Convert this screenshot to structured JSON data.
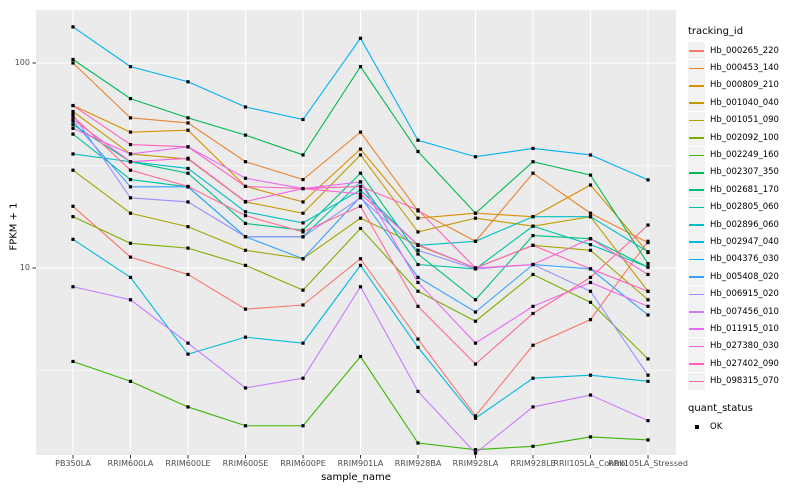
{
  "chart_data": {
    "type": "line",
    "title": "",
    "xlabel": "sample_name",
    "ylabel": "FPKM + 1",
    "y_scale": "log10",
    "y_tick_labels": [
      "100",
      "10"
    ],
    "y_tick_values": [
      100,
      10
    ],
    "y_minor_values": [
      31.62,
      3.162
    ],
    "ylim": [
      1.2,
      181
    ],
    "grid": true,
    "legend_position": "right",
    "legend_title": "tracking_id",
    "point_legend_title": "quant_status",
    "point_legend_label": "OK",
    "point_shape": "filled-square",
    "categories": [
      "PB350LA",
      "RRIM600LA",
      "RRIM600LE",
      "RRIM600SE",
      "RRIM600PE",
      "RRIM901LA",
      "RRIM928BA",
      "RRIM928LA",
      "RRIM928LE",
      "RRII105LA_Control",
      "RRII105LA_Stressed"
    ],
    "series": [
      {
        "name": "Hb_000265_220",
        "color": "#F8766D",
        "values": [
          20,
          11.3,
          9.3,
          6.3,
          6.6,
          11.1,
          4.5,
          1.9,
          4.2,
          5.6,
          13.5
        ]
      },
      {
        "name": "Hb_000453_140",
        "color": "#EA8331",
        "values": [
          100,
          54,
          51,
          33,
          27,
          46,
          19,
          13.5,
          29,
          18.5,
          13.3
        ]
      },
      {
        "name": "Hb_000809_210",
        "color": "#D89000",
        "values": [
          62,
          46,
          47,
          25,
          21,
          38,
          17.5,
          18.5,
          17.8,
          25.4,
          11.9
        ]
      },
      {
        "name": "Hb_001040_040",
        "color": "#C09B00",
        "values": [
          58,
          36,
          34,
          21,
          18.5,
          35.6,
          15,
          17.5,
          16,
          17.8,
          7.7
        ]
      },
      {
        "name": "Hb_001051_090",
        "color": "#A3A500",
        "values": [
          30,
          18.5,
          15.9,
          12.2,
          11.1,
          17.5,
          12.9,
          10,
          12.9,
          12.2,
          7
        ]
      },
      {
        "name": "Hb_002092_100",
        "color": "#7CAE00",
        "values": [
          17.8,
          13.2,
          12.5,
          10.3,
          7.8,
          15.6,
          7.7,
          5.5,
          9.3,
          6.8,
          3.6
        ]
      },
      {
        "name": "Hb_002249_160",
        "color": "#39B600",
        "values": [
          3.5,
          2.8,
          2.1,
          1.7,
          1.7,
          3.7,
          1.4,
          1.3,
          1.35,
          1.5,
          1.45
        ]
      },
      {
        "name": "Hb_002307_350",
        "color": "#00BB4E",
        "values": [
          104,
          67,
          54,
          44.5,
          35.6,
          96,
          37,
          18.5,
          33,
          28.4,
          10.5
        ]
      },
      {
        "name": "Hb_002681_170",
        "color": "#00BF7D",
        "values": [
          50,
          33,
          29,
          16.5,
          15.3,
          29,
          11.7,
          7,
          14.4,
          13.9,
          10.1
        ]
      },
      {
        "name": "Hb_002805_060",
        "color": "#00C1A3",
        "values": [
          45,
          27,
          24.9,
          14.2,
          14.2,
          26.3,
          10.4,
          9.9,
          16,
          13,
          10.1
        ]
      },
      {
        "name": "Hb_002896_060",
        "color": "#00BFC4",
        "values": [
          36,
          33,
          30.6,
          18.8,
          16.6,
          24,
          12.9,
          13.5,
          17.8,
          17.8,
          12
        ]
      },
      {
        "name": "Hb_002947_040",
        "color": "#00BAE0",
        "values": [
          13.8,
          9,
          3.8,
          4.6,
          4.3,
          10.3,
          4.1,
          1.85,
          2.9,
          3,
          2.8
        ]
      },
      {
        "name": "Hb_004376_030",
        "color": "#00B0F6",
        "values": [
          150,
          96,
          81,
          61,
          53,
          132,
          42,
          34.9,
          38.3,
          35.6,
          26.9
        ]
      },
      {
        "name": "Hb_005408_020",
        "color": "#35A2FF",
        "values": [
          52,
          24.9,
          24.9,
          14.2,
          11.1,
          22.3,
          9,
          6.1,
          10.4,
          9.9,
          5.9
        ]
      },
      {
        "name": "Hb_006915_020",
        "color": "#9590FF",
        "values": [
          56,
          22,
          21,
          14.2,
          14.2,
          22,
          12.2,
          9.9,
          10.4,
          7.7,
          3
        ]
      },
      {
        "name": "Hb_007456_010",
        "color": "#C77CFF",
        "values": [
          8.1,
          7,
          4.3,
          2.6,
          2.9,
          8.1,
          2.5,
          1.25,
          2.1,
          2.4,
          1.8
        ]
      },
      {
        "name": "Hb_011915_010",
        "color": "#E76BF3",
        "values": [
          48,
          36,
          39,
          27.4,
          24.4,
          26.3,
          8.5,
          4.3,
          6.5,
          8.5,
          6.5
        ]
      },
      {
        "name": "Hb_027380_030",
        "color": "#FA62DB",
        "values": [
          53,
          33,
          34.3,
          21.1,
          24.4,
          23,
          13,
          10,
          10.4,
          13.9,
          9.3
        ]
      },
      {
        "name": "Hb_027402_090",
        "color": "#FF62BC",
        "values": [
          62,
          40,
          39,
          25,
          24.4,
          25,
          19.2,
          10,
          12.9,
          9.9,
          7.7
        ]
      },
      {
        "name": "Hb_098315_070",
        "color": "#FF6A98",
        "values": [
          55,
          30,
          25,
          18,
          15,
          20,
          6.5,
          3.4,
          6,
          9,
          16.2
        ]
      }
    ]
  },
  "theme": {
    "panel_bg": "#EBEBEB",
    "grid_color": "#FFFFFF",
    "point_color": "#000000",
    "tick_text_color": "#4D4D4D",
    "tick_mark_color": "#333333",
    "legend_key_bg": "#F2F2F2"
  }
}
